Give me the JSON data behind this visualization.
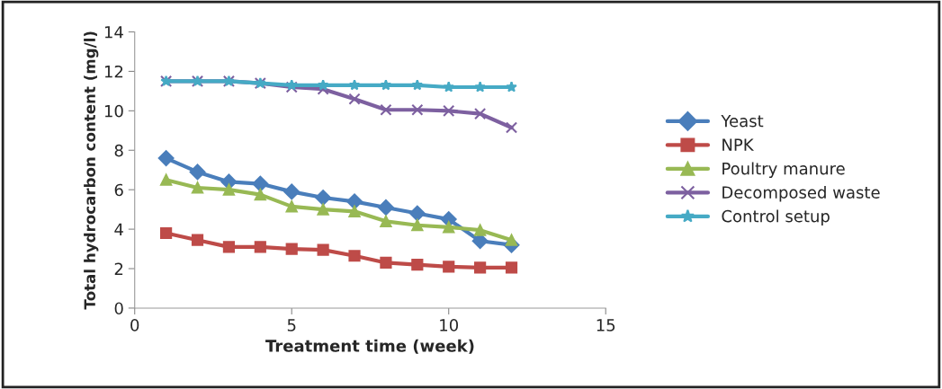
{
  "chart_data": {
    "type": "line",
    "xlabel": "Treatment time (week)",
    "ylabel": "Total hydrocarbon content (mg/l)",
    "x": [
      1,
      2,
      3,
      4,
      5,
      6,
      7,
      8,
      9,
      10,
      11,
      12
    ],
    "xlim": [
      0,
      15
    ],
    "xticks": [
      0,
      5,
      10,
      15
    ],
    "ylim": [
      0,
      14
    ],
    "yticks": [
      0,
      2,
      4,
      6,
      8,
      10,
      12,
      14
    ],
    "grid": false,
    "legend": "right",
    "series": [
      {
        "name": "Yeast",
        "color": "#4a7ebb",
        "marker": "diamond",
        "values": [
          7.6,
          6.9,
          6.4,
          6.3,
          5.9,
          5.6,
          5.4,
          5.1,
          4.8,
          4.5,
          3.4,
          3.2
        ]
      },
      {
        "name": "NPK",
        "color": "#be4b48",
        "marker": "square",
        "values": [
          3.8,
          3.45,
          3.1,
          3.1,
          3.0,
          2.95,
          2.65,
          2.3,
          2.2,
          2.1,
          2.05,
          2.05
        ]
      },
      {
        "name": "Poultry manure",
        "color": "#98b954",
        "marker": "triangle",
        "values": [
          6.5,
          6.1,
          6.0,
          5.75,
          5.15,
          5.0,
          4.9,
          4.4,
          4.2,
          4.1,
          3.95,
          3.45
        ]
      },
      {
        "name": "Decomposed waste",
        "color": "#7d60a0",
        "marker": "cross",
        "values": [
          11.5,
          11.5,
          11.5,
          11.4,
          11.2,
          11.1,
          10.6,
          10.05,
          10.05,
          10.0,
          9.85,
          9.15
        ]
      },
      {
        "name": "Control setup",
        "color": "#46aac5",
        "marker": "star",
        "values": [
          11.5,
          11.5,
          11.5,
          11.4,
          11.3,
          11.3,
          11.3,
          11.3,
          11.3,
          11.2,
          11.2,
          11.2
        ]
      }
    ]
  }
}
